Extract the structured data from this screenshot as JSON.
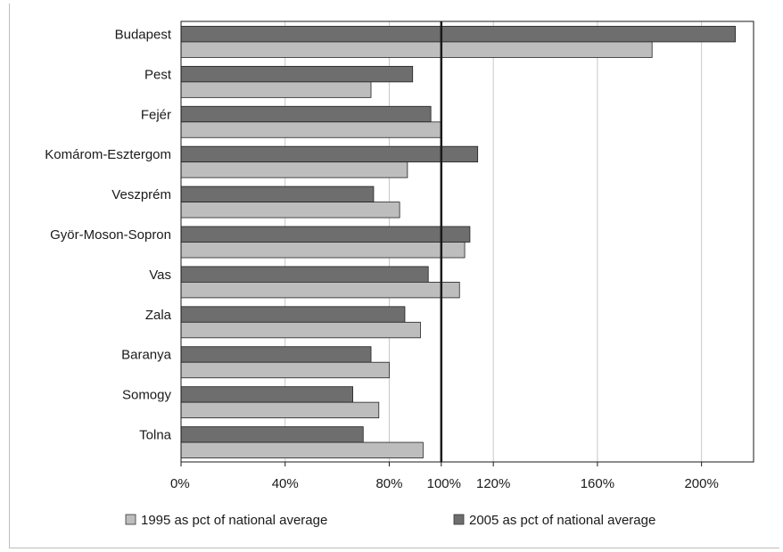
{
  "chart_data": {
    "type": "bar",
    "orientation": "horizontal",
    "categories": [
      "Budapest",
      "Pest",
      "Fejér",
      "Komárom-Esztergom",
      "Veszprém",
      "Györ-Moson-Sopron",
      "Vas",
      "Zala",
      "Baranya",
      "Somogy",
      "Tolna"
    ],
    "series": [
      {
        "name": "2005 as pct of national average",
        "color": "#6e6e6e",
        "values": [
          213,
          89,
          96,
          114,
          74,
          111,
          95,
          86,
          73,
          66,
          70
        ]
      },
      {
        "name": "1995 as pct of national average",
        "color": "#bdbdbd",
        "values": [
          181,
          73,
          100,
          87,
          84,
          109,
          107,
          92,
          80,
          76,
          93
        ]
      }
    ],
    "xlim": [
      0,
      220
    ],
    "xticks": [
      0,
      40,
      80,
      100,
      120,
      160,
      200
    ],
    "xtick_labels": [
      "0%",
      "40%",
      "80%",
      "100%",
      "120%",
      "160%",
      "200%"
    ],
    "reference_line": 100,
    "grid": "vertical",
    "title": "",
    "xlabel": "",
    "ylabel": "",
    "legend_position": "bottom",
    "legend": [
      {
        "label": "1995 as pct of national average",
        "color": "#bdbdbd"
      },
      {
        "label": "2005 as pct of national average",
        "color": "#6e6e6e"
      }
    ]
  }
}
